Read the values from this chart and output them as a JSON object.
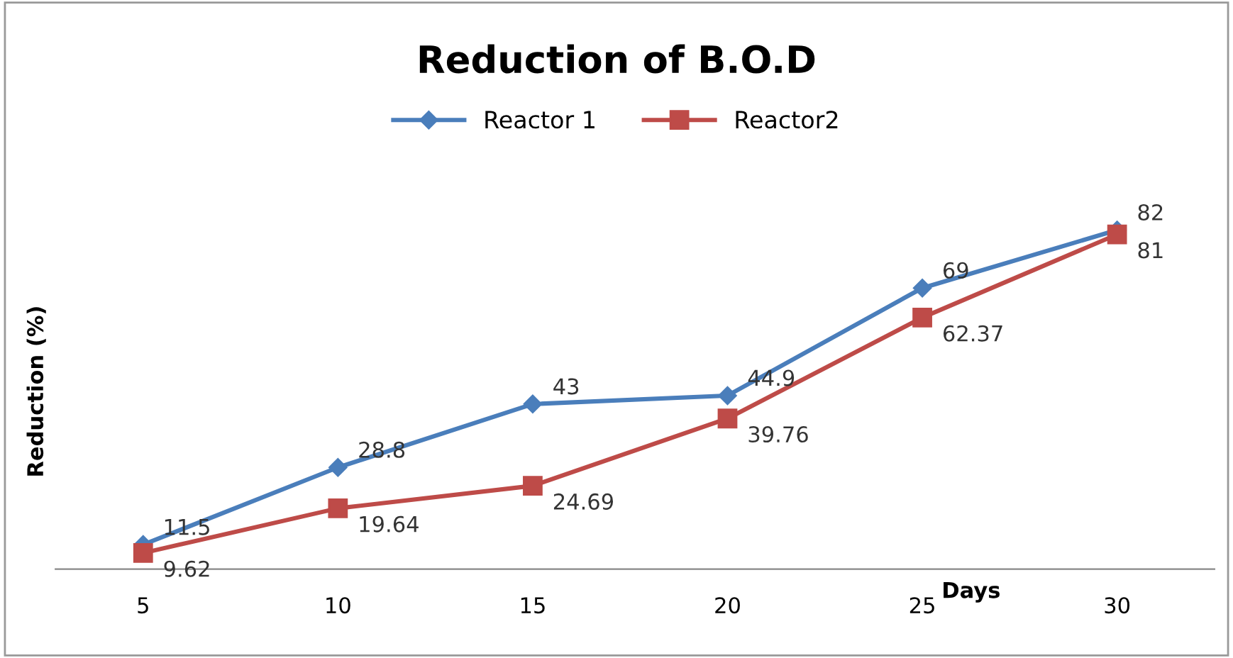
{
  "chart_data": {
    "type": "line",
    "title": "Reduction of B.O.D",
    "xlabel": "Days",
    "ylabel": "Reduction (%)",
    "categories": [
      "5",
      "10",
      "15",
      "20",
      "25",
      "30"
    ],
    "series": [
      {
        "name": "Reactor 1",
        "color": "#4a7ebb",
        "marker": "diamond",
        "values": [
          11.5,
          28.8,
          43,
          44.9,
          69,
          82
        ]
      },
      {
        "name": "Reactor2",
        "color": "#be4b48",
        "marker": "square",
        "values": [
          9.62,
          19.64,
          24.69,
          39.76,
          62.37,
          81
        ]
      }
    ],
    "tick_labels": "x",
    "data_labels": true,
    "legend": "top",
    "grid": false
  }
}
